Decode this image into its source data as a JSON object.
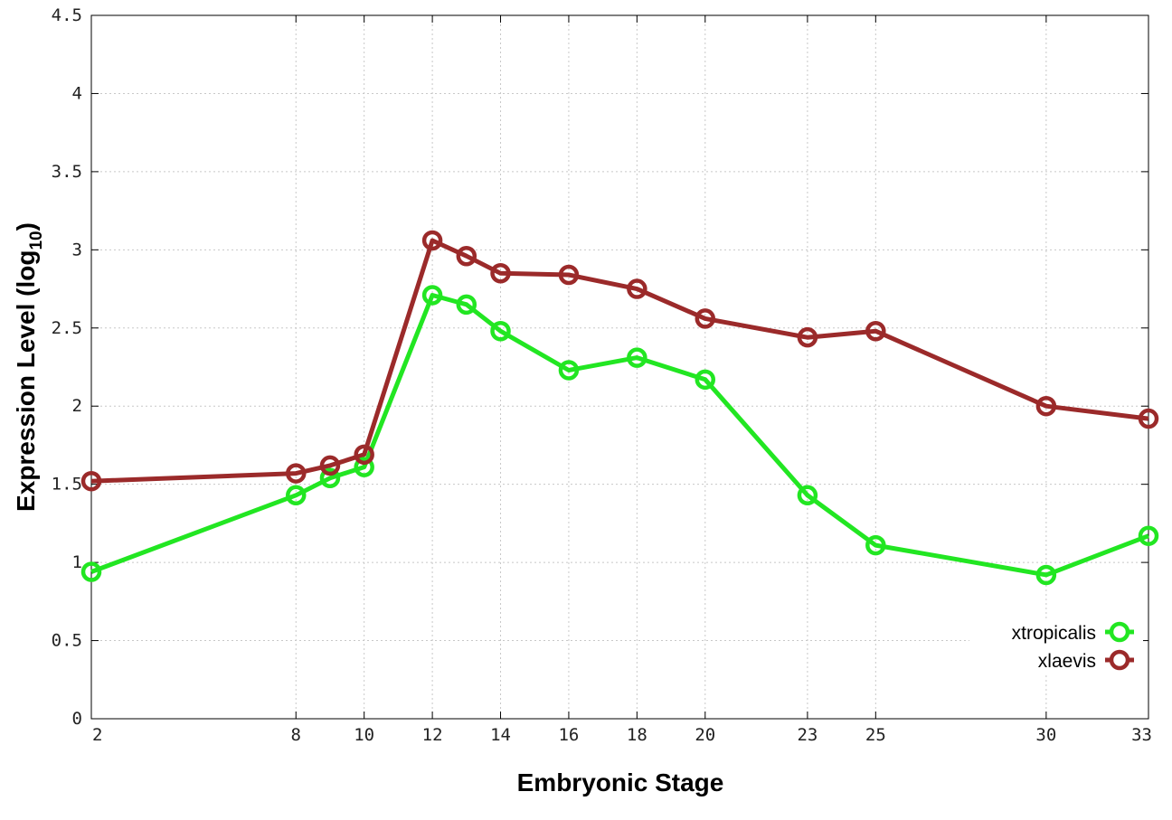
{
  "chart_data": {
    "type": "line",
    "xlabel": "Embryonic Stage",
    "ylabel_main": "Expression Level (log",
    "ylabel_sub": "10",
    "ylabel_close": ")",
    "ylim": [
      0,
      4.5
    ],
    "y_ticks": [
      "0",
      "0.5",
      "1",
      "1.5",
      "2",
      "2.5",
      "3",
      "3.5",
      "4",
      "4.5"
    ],
    "y_tick_values": [
      0,
      0.5,
      1,
      1.5,
      2,
      2.5,
      3,
      3.5,
      4,
      4.5
    ],
    "x": [
      2,
      8,
      9,
      10,
      12,
      13,
      14,
      16,
      18,
      20,
      23,
      25,
      30,
      33
    ],
    "x_tick_values": [
      2,
      8,
      10,
      12,
      14,
      16,
      18,
      20,
      23,
      25,
      30,
      33
    ],
    "x_ticks": [
      "2",
      "8",
      "10",
      "12",
      "14",
      "16",
      "18",
      "20",
      "23",
      "25",
      "30",
      "33"
    ],
    "xlim": [
      2,
      33
    ],
    "grid": true,
    "legend_position": "bottom-right",
    "series": [
      {
        "name": "xtropicalis",
        "color": "#22e622",
        "values": [
          0.94,
          1.43,
          1.54,
          1.61,
          2.71,
          2.65,
          2.48,
          2.23,
          2.31,
          2.17,
          1.43,
          1.11,
          0.92,
          1.17
        ]
      },
      {
        "name": "xlaevis",
        "color": "#9b2a2a",
        "values": [
          1.52,
          1.57,
          1.62,
          1.69,
          3.06,
          2.96,
          2.85,
          2.84,
          2.75,
          2.56,
          2.44,
          2.48,
          2.0,
          1.92
        ]
      }
    ]
  }
}
